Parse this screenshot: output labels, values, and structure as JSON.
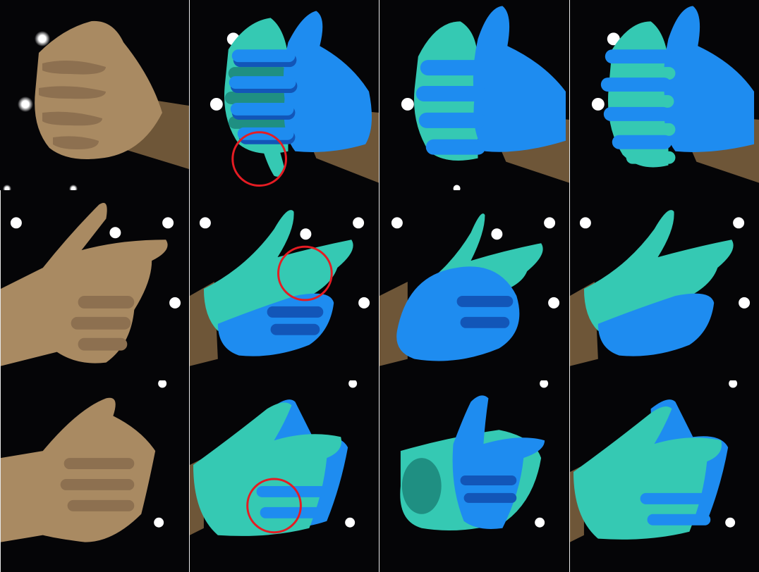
{
  "figure": {
    "rows": 3,
    "columns": 4,
    "palette": {
      "background": "#050507",
      "skin": "#a98a62",
      "skin_shadow": "#6e5638",
      "hand_cyan": "#35c9b3",
      "hand_cyan_shadow": "#1f8f82",
      "hand_blue": "#1e8cf0",
      "hand_blue_shadow": "#1256b8",
      "highlight_circle": "#e51c23",
      "light": "#ffffff"
    },
    "column_kinds": [
      "photo",
      "reconstruction-a",
      "reconstruction-b",
      "reconstruction-c"
    ],
    "highlighted_cells": [
      "r1c2",
      "r2c2",
      "r3c2"
    ]
  }
}
